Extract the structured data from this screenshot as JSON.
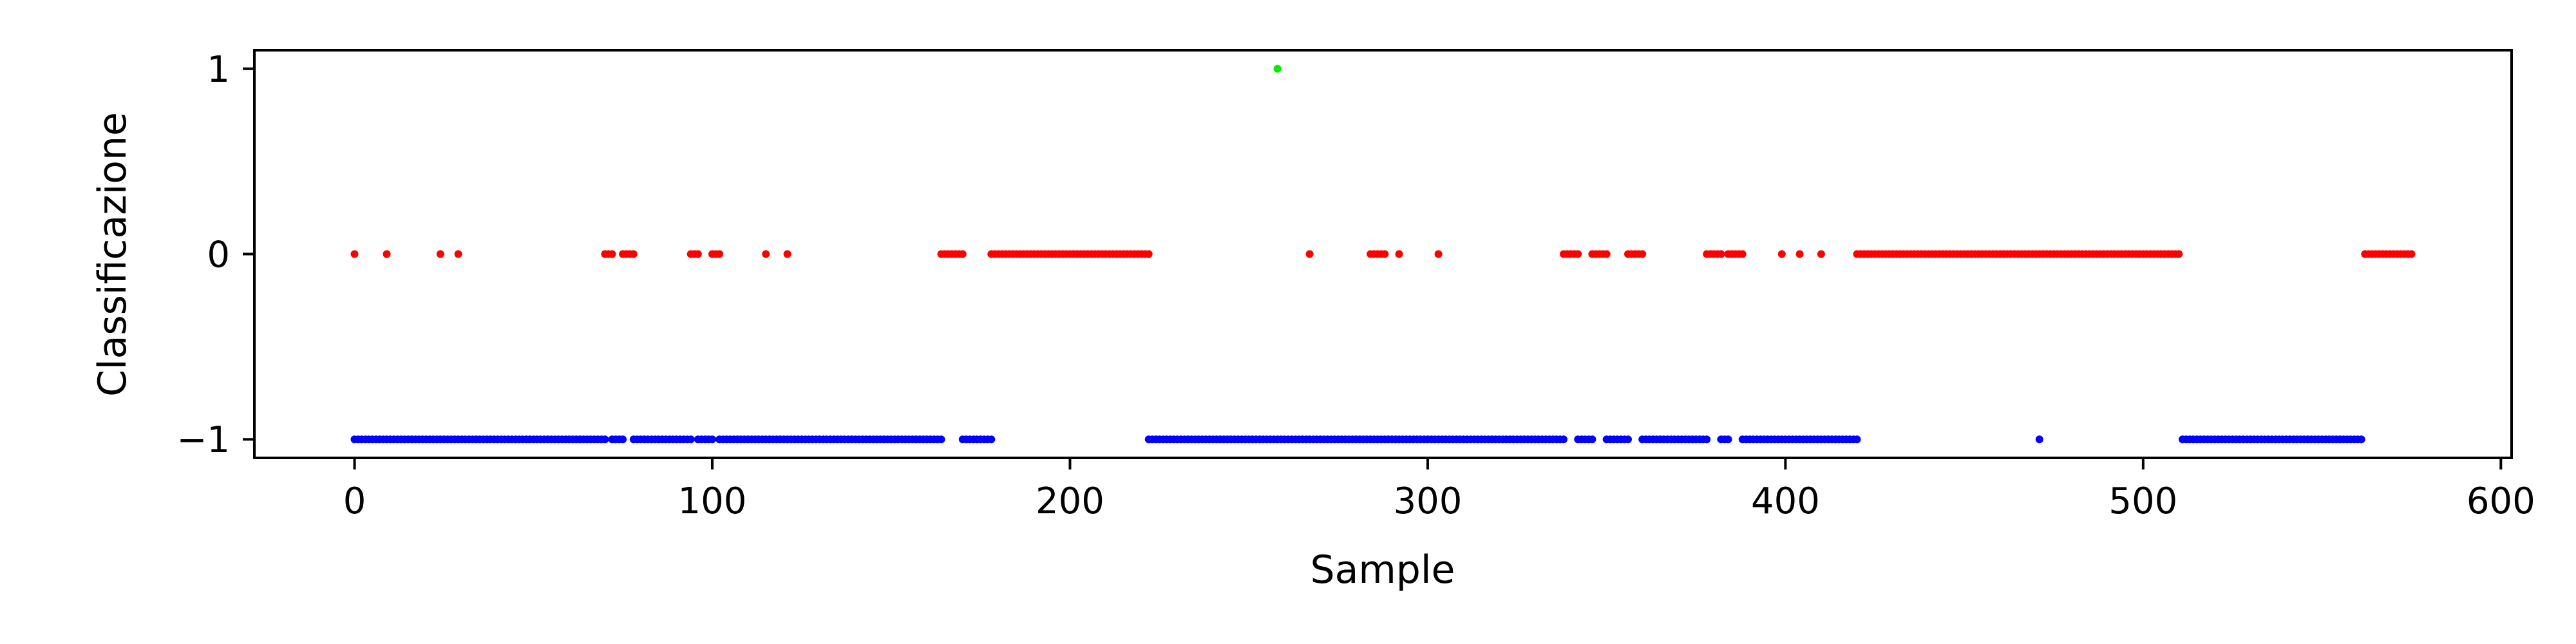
{
  "chart_data": {
    "type": "scatter",
    "title": "",
    "xlabel": "Sample",
    "ylabel": "Classificazione",
    "xlim": [
      -28,
      603
    ],
    "ylim": [
      -1.1,
      1.1
    ],
    "xticks": [
      0,
      100,
      200,
      300,
      400,
      500,
      600
    ],
    "yticks": [
      1,
      0,
      -1
    ],
    "ytick_labels": [
      "1",
      "0",
      "−1"
    ],
    "grid": false,
    "legend": "none",
    "colors": {
      "1": "#00ee00",
      "0": "#ff0000",
      "-1": "#0000ff"
    },
    "series": [
      {
        "y": -1,
        "x_ranges": [
          [
            0,
            70
          ],
          [
            72,
            75
          ],
          [
            78,
            94
          ],
          [
            96,
            100
          ],
          [
            102,
            164
          ],
          [
            170,
            178
          ],
          [
            222,
            338
          ],
          [
            342,
            346
          ],
          [
            350,
            356
          ],
          [
            360,
            378
          ],
          [
            382,
            384
          ],
          [
            388,
            420
          ],
          [
            471,
            471
          ],
          [
            511,
            561
          ]
        ]
      },
      {
        "y": 0,
        "x_ranges": [
          [
            0,
            0
          ],
          [
            9,
            9
          ],
          [
            24,
            24
          ],
          [
            29,
            29
          ],
          [
            70,
            72
          ],
          [
            75,
            78
          ],
          [
            94,
            96
          ],
          [
            100,
            102
          ],
          [
            115,
            115
          ],
          [
            121,
            121
          ],
          [
            164,
            170
          ],
          [
            178,
            222
          ],
          [
            267,
            267
          ],
          [
            284,
            288
          ],
          [
            292,
            292
          ],
          [
            303,
            303
          ],
          [
            338,
            342
          ],
          [
            346,
            350
          ],
          [
            356,
            360
          ],
          [
            378,
            382
          ],
          [
            384,
            388
          ],
          [
            399,
            399
          ],
          [
            404,
            404
          ],
          [
            410,
            410
          ],
          [
            420,
            510
          ],
          [
            562,
            575
          ]
        ]
      },
      {
        "y": 1,
        "x_ranges": [
          [
            258,
            258
          ]
        ]
      }
    ]
  }
}
